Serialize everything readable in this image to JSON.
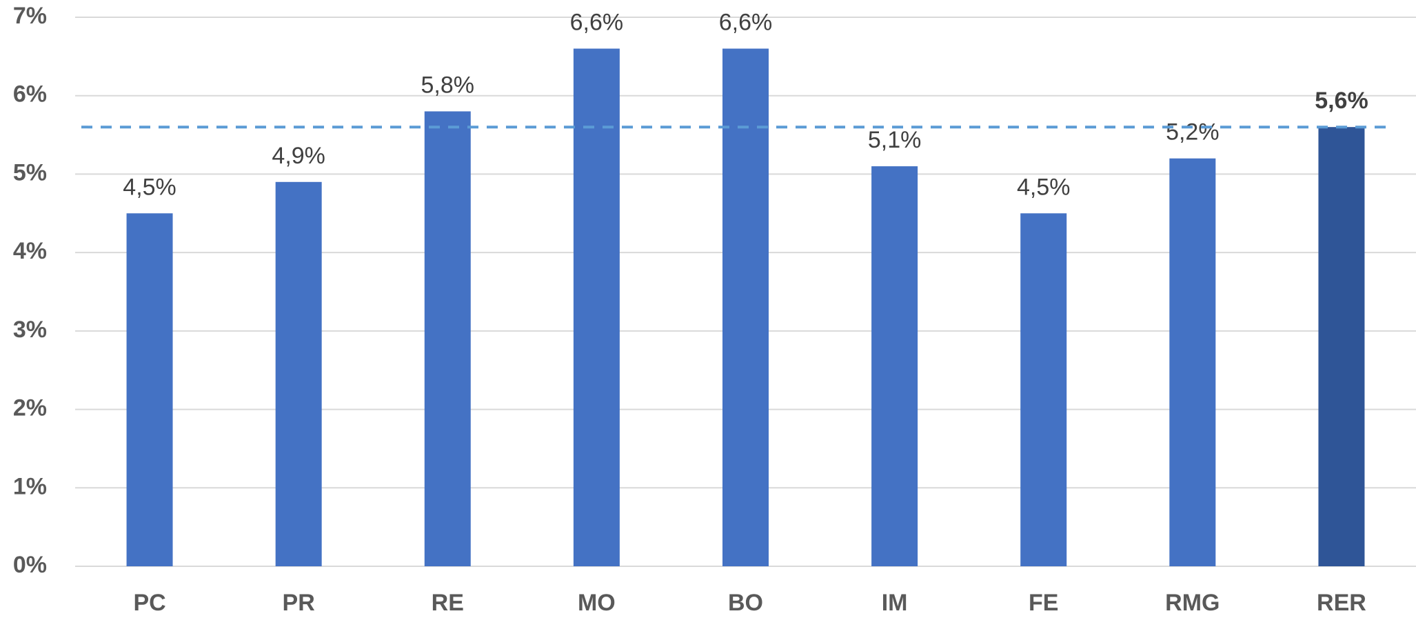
{
  "chart_data": {
    "type": "bar",
    "categories": [
      "PC",
      "PR",
      "RE",
      "MO",
      "BO",
      "IM",
      "FE",
      "RMG",
      "RER"
    ],
    "values": [
      4.5,
      4.9,
      5.8,
      6.6,
      6.6,
      5.1,
      4.5,
      5.2,
      5.6
    ],
    "value_labels": [
      "4,5%",
      "4,9%",
      "5,8%",
      "6,6%",
      "6,6%",
      "5,1%",
      "4,5%",
      "5,2%",
      "5,6%"
    ],
    "color": "#4472c4",
    "highlight": "RER",
    "highlight_color": "#2f5597",
    "reference_line": 5.6,
    "reference_color": "#5b9bd5",
    "ylim": [
      0,
      7
    ],
    "yticks": [
      {
        "value": 0,
        "label": "0%"
      },
      {
        "value": 1,
        "label": "1%"
      },
      {
        "value": 2,
        "label": "2%"
      },
      {
        "value": 3,
        "label": "3%"
      },
      {
        "value": 4,
        "label": "4%"
      },
      {
        "value": 5,
        "label": "5%"
      },
      {
        "value": 6,
        "label": "6%"
      },
      {
        "value": 7,
        "label": "7%"
      }
    ],
    "grid": true
  }
}
